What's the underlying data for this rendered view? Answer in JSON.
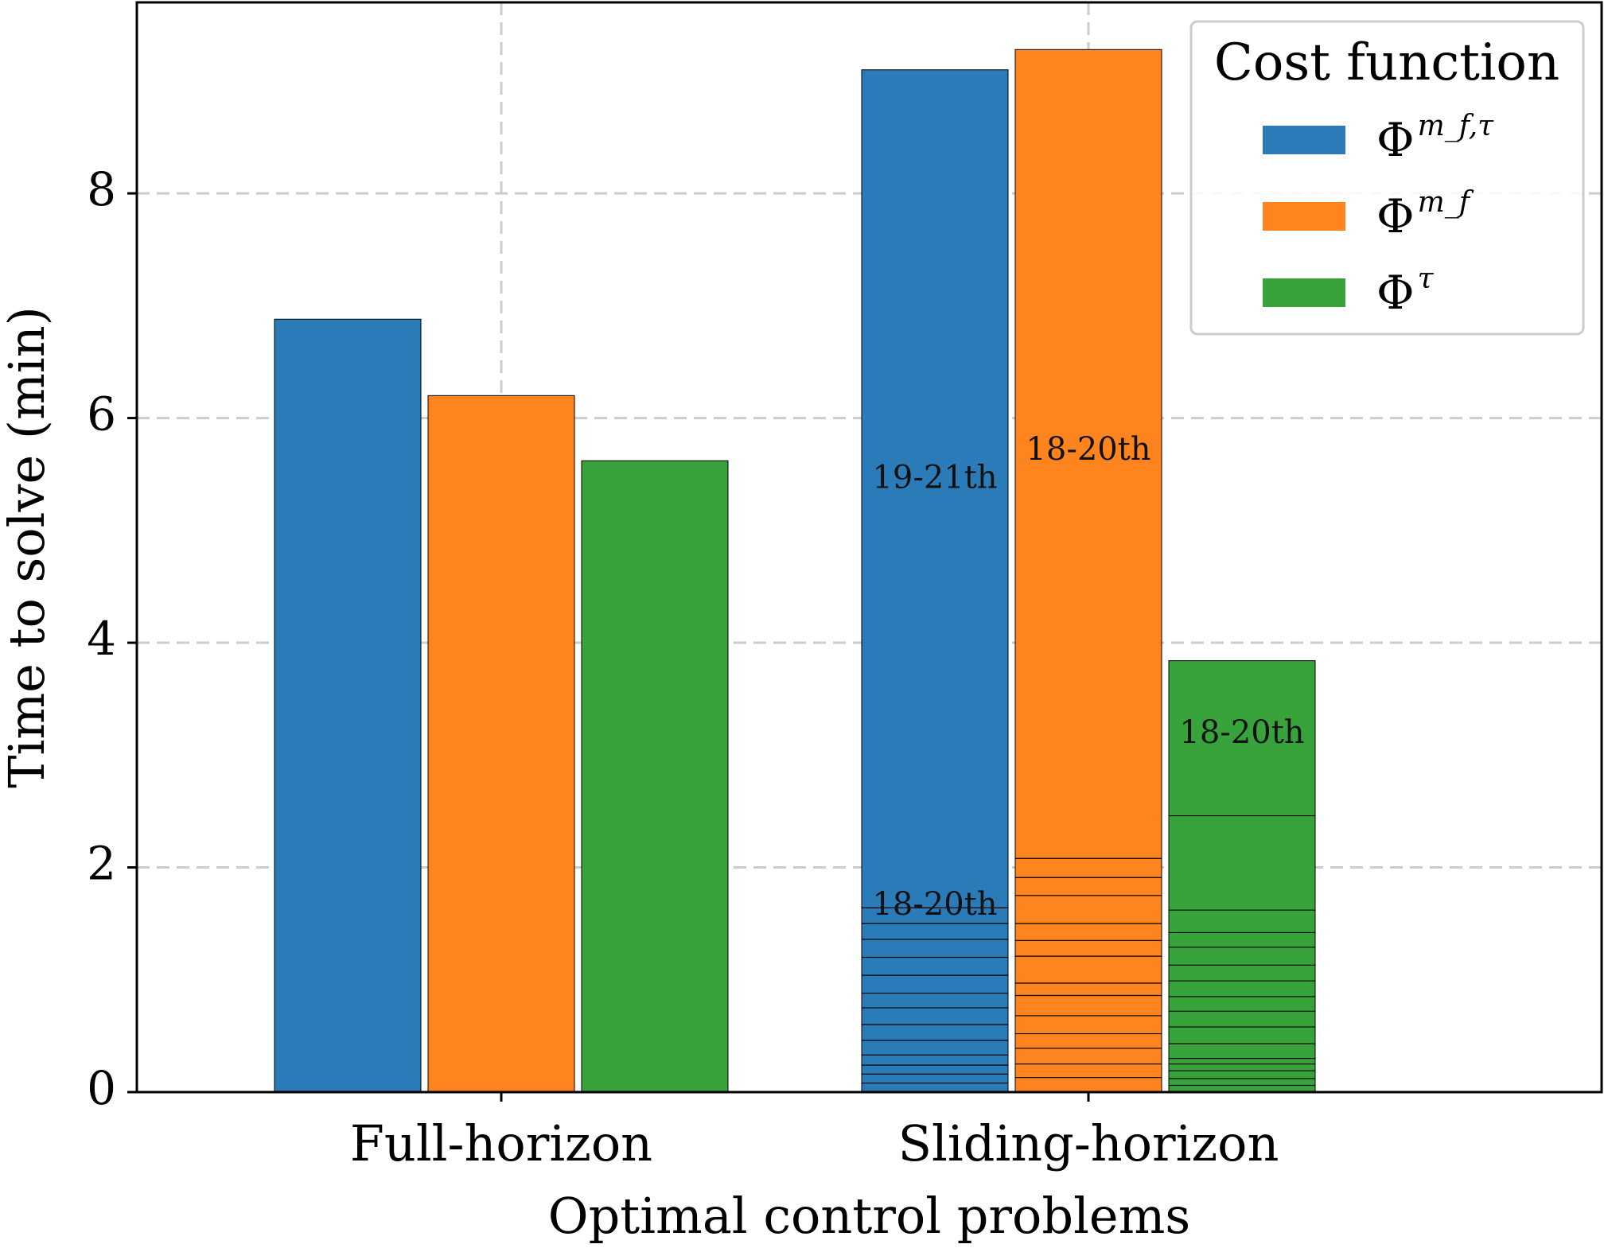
{
  "chart_data": {
    "type": "bar",
    "xlabel": "Optimal control problems",
    "ylabel": "Time to solve (min)",
    "ylim": [
      0,
      9.7
    ],
    "yticks": [
      0,
      2,
      4,
      6,
      8
    ],
    "grid": true,
    "legend": {
      "title": "Cost function",
      "placement": "top-right",
      "entries": [
        {
          "base": "Φ",
          "sup": "m_f,τ",
          "color": "#2b7bb9"
        },
        {
          "base": "Φ",
          "sup": "m_f",
          "color": "#ff841d"
        },
        {
          "base": "Φ",
          "sup": "τ",
          "color": "#38a33a"
        }
      ]
    },
    "categories": [
      "Full-horizon",
      "Sliding-horizon"
    ],
    "series": [
      {
        "color": "#2b7bb9",
        "values": [
          6.88,
          9.1
        ]
      },
      {
        "color": "#ff841d",
        "values": [
          6.2,
          9.28
        ]
      },
      {
        "color": "#38a33a",
        "values": [
          5.62,
          3.84
        ]
      }
    ],
    "stack_boundaries": {
      "Sliding-horizon": [
        [
          0.08,
          0.16,
          0.24,
          0.33,
          0.46,
          0.6,
          0.75,
          0.88,
          1.04,
          1.2,
          1.36,
          1.5,
          1.64
        ],
        [
          0.13,
          0.25,
          0.39,
          0.52,
          0.68,
          0.86,
          0.97,
          1.21,
          1.35,
          1.5,
          1.75,
          1.91,
          2.08
        ],
        [
          0.06,
          0.12,
          0.19,
          0.25,
          0.3,
          0.43,
          0.58,
          0.72,
          0.85,
          0.99,
          1.13,
          1.29,
          1.42,
          1.62,
          2.46
        ]
      ]
    },
    "annotations": [
      {
        "category": "Sliding-horizon",
        "series": 0,
        "text": "18-20th",
        "y": 1.65
      },
      {
        "category": "Sliding-horizon",
        "series": 0,
        "text": "19-21th",
        "y": 5.45
      },
      {
        "category": "Sliding-horizon",
        "series": 1,
        "text": "18-20th",
        "y": 5.7
      },
      {
        "category": "Sliding-horizon",
        "series": 2,
        "text": "18-20th",
        "y": 3.18
      }
    ]
  }
}
